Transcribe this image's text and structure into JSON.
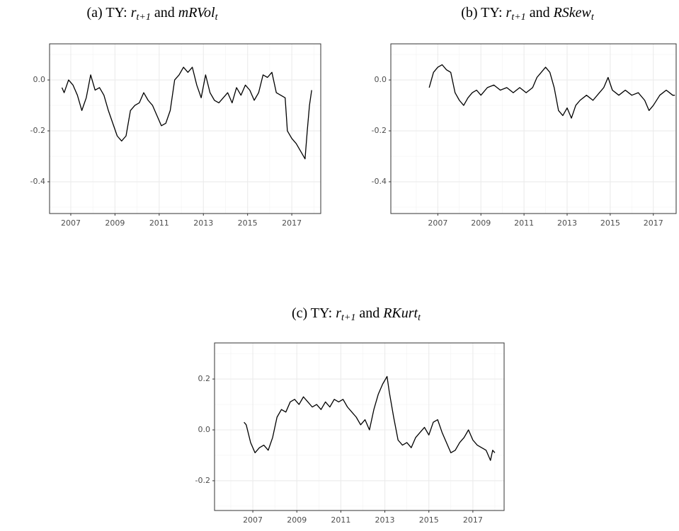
{
  "chart_data": [
    {
      "type": "line",
      "title_parts": [
        {
          "text": "(a) TY: ",
          "style": "normal"
        },
        {
          "text": "r",
          "style": "italic"
        },
        {
          "text": "t+1",
          "style": "sub"
        },
        {
          "text": " and ",
          "style": "normal"
        },
        {
          "text": "mRVol",
          "style": "italic"
        },
        {
          "text": "t",
          "style": "sub"
        }
      ],
      "x": [
        2006.6,
        2006.7,
        2006.9,
        2007.1,
        2007.3,
        2007.5,
        2007.7,
        2007.9,
        2008.1,
        2008.3,
        2008.5,
        2008.7,
        2008.9,
        2009.1,
        2009.3,
        2009.5,
        2009.7,
        2009.9,
        2010.1,
        2010.3,
        2010.5,
        2010.7,
        2010.9,
        2011.1,
        2011.3,
        2011.5,
        2011.7,
        2011.9,
        2012.1,
        2012.3,
        2012.5,
        2012.7,
        2012.9,
        2013.1,
        2013.3,
        2013.5,
        2013.7,
        2013.9,
        2014.1,
        2014.3,
        2014.5,
        2014.7,
        2014.9,
        2015.1,
        2015.3,
        2015.5,
        2015.7,
        2015.9,
        2016.1,
        2016.3,
        2016.5,
        2016.7,
        2016.8,
        2017.0,
        2017.2,
        2017.4,
        2017.6,
        2017.7,
        2017.8,
        2017.9
      ],
      "values": [
        -0.03,
        -0.05,
        0.0,
        -0.02,
        -0.06,
        -0.12,
        -0.07,
        0.02,
        -0.04,
        -0.03,
        -0.06,
        -0.12,
        -0.17,
        -0.22,
        -0.24,
        -0.22,
        -0.12,
        -0.1,
        -0.09,
        -0.05,
        -0.08,
        -0.1,
        -0.14,
        -0.18,
        -0.17,
        -0.12,
        0.0,
        0.02,
        0.05,
        0.03,
        0.05,
        -0.02,
        -0.07,
        0.02,
        -0.05,
        -0.08,
        -0.09,
        -0.07,
        -0.05,
        -0.09,
        -0.03,
        -0.06,
        -0.02,
        -0.04,
        -0.08,
        -0.05,
        0.02,
        0.01,
        0.03,
        -0.05,
        -0.06,
        -0.07,
        -0.2,
        -0.23,
        -0.25,
        -0.28,
        -0.31,
        -0.2,
        -0.1,
        -0.04
      ],
      "color": "#000000",
      "xlim": [
        2006.04,
        2018.31
      ],
      "ylim": [
        -0.525,
        0.142
      ],
      "xticks": [
        2007,
        2009,
        2011,
        2013,
        2015,
        2017
      ],
      "yticks": [
        -0.4,
        -0.2,
        {
          "value": 0,
          "label": "0.0"
        }
      ],
      "grid": true
    },
    {
      "type": "line",
      "title_parts": [
        {
          "text": "(b) TY: ",
          "style": "normal"
        },
        {
          "text": "r",
          "style": "italic"
        },
        {
          "text": "t+1",
          "style": "sub"
        },
        {
          "text": " and ",
          "style": "normal"
        },
        {
          "text": "RSkew",
          "style": "italic"
        },
        {
          "text": "t",
          "style": "sub"
        }
      ],
      "x": [
        2006.6,
        2006.8,
        2007.0,
        2007.2,
        2007.4,
        2007.6,
        2007.8,
        2008.0,
        2008.2,
        2008.4,
        2008.6,
        2008.8,
        2009.0,
        2009.3,
        2009.6,
        2009.9,
        2010.2,
        2010.5,
        2010.8,
        2011.1,
        2011.4,
        2011.6,
        2011.8,
        2012.0,
        2012.2,
        2012.4,
        2012.6,
        2012.8,
        2013.0,
        2013.2,
        2013.4,
        2013.6,
        2013.9,
        2014.2,
        2014.5,
        2014.7,
        2014.9,
        2015.1,
        2015.4,
        2015.7,
        2016.0,
        2016.3,
        2016.6,
        2016.8,
        2017.0,
        2017.3,
        2017.6,
        2017.9,
        2018.0
      ],
      "values": [
        -0.03,
        0.03,
        0.05,
        0.06,
        0.04,
        0.03,
        -0.05,
        -0.08,
        -0.1,
        -0.07,
        -0.05,
        -0.04,
        -0.06,
        -0.03,
        -0.02,
        -0.04,
        -0.03,
        -0.05,
        -0.03,
        -0.05,
        -0.03,
        0.01,
        0.03,
        0.05,
        0.03,
        -0.03,
        -0.12,
        -0.14,
        -0.11,
        -0.15,
        -0.1,
        -0.08,
        -0.06,
        -0.08,
        -0.05,
        -0.03,
        0.01,
        -0.04,
        -0.06,
        -0.04,
        -0.06,
        -0.05,
        -0.08,
        -0.12,
        -0.1,
        -0.06,
        -0.04,
        -0.06,
        -0.06
      ],
      "color": "#000000",
      "xlim": [
        2004.82,
        2018.06
      ],
      "ylim": [
        -0.525,
        0.142
      ],
      "xticks": [
        2007,
        2009,
        2011,
        2013,
        2015,
        2017
      ],
      "yticks": [
        -0.4,
        -0.2,
        {
          "value": 0,
          "label": "0.0"
        }
      ],
      "grid": true
    },
    {
      "type": "line",
      "title_parts": [
        {
          "text": "(c) TY: ",
          "style": "normal"
        },
        {
          "text": "r",
          "style": "italic"
        },
        {
          "text": "t+1",
          "style": "sub"
        },
        {
          "text": " and ",
          "style": "normal"
        },
        {
          "text": "RKurt",
          "style": "italic"
        },
        {
          "text": "t",
          "style": "sub"
        }
      ],
      "x": [
        2006.6,
        2006.7,
        2006.9,
        2007.1,
        2007.3,
        2007.5,
        2007.7,
        2007.9,
        2008.1,
        2008.3,
        2008.5,
        2008.7,
        2008.9,
        2009.1,
        2009.3,
        2009.5,
        2009.7,
        2009.9,
        2010.1,
        2010.3,
        2010.5,
        2010.7,
        2010.9,
        2011.1,
        2011.3,
        2011.5,
        2011.7,
        2011.9,
        2012.1,
        2012.3,
        2012.5,
        2012.7,
        2012.9,
        2013.1,
        2013.2,
        2013.4,
        2013.6,
        2013.8,
        2014.0,
        2014.2,
        2014.4,
        2014.6,
        2014.8,
        2015.0,
        2015.2,
        2015.4,
        2015.6,
        2015.8,
        2016.0,
        2016.2,
        2016.4,
        2016.6,
        2016.8,
        2017.0,
        2017.2,
        2017.4,
        2017.6,
        2017.8,
        2017.9,
        2018.0
      ],
      "values": [
        0.03,
        0.02,
        -0.05,
        -0.09,
        -0.07,
        -0.06,
        -0.08,
        -0.03,
        0.05,
        0.08,
        0.07,
        0.11,
        0.12,
        0.1,
        0.13,
        0.11,
        0.09,
        0.1,
        0.08,
        0.11,
        0.09,
        0.12,
        0.11,
        0.12,
        0.09,
        0.07,
        0.05,
        0.02,
        0.04,
        0.0,
        0.08,
        0.14,
        0.18,
        0.21,
        0.15,
        0.05,
        -0.04,
        -0.06,
        -0.05,
        -0.07,
        -0.03,
        -0.01,
        0.01,
        -0.02,
        0.03,
        0.04,
        -0.01,
        -0.05,
        -0.09,
        -0.08,
        -0.05,
        -0.03,
        0.0,
        -0.04,
        -0.06,
        -0.07,
        -0.08,
        -0.12,
        -0.08,
        -0.09
      ],
      "color": "#000000",
      "xlim": [
        2005.26,
        2018.42
      ],
      "ylim": [
        -0.317,
        0.342
      ],
      "xticks": [
        2007,
        2009,
        2011,
        2013,
        2015,
        2017
      ],
      "yticks": [
        -0.2,
        {
          "value": 0,
          "label": "0.0"
        },
        0.2
      ],
      "grid": true
    }
  ]
}
